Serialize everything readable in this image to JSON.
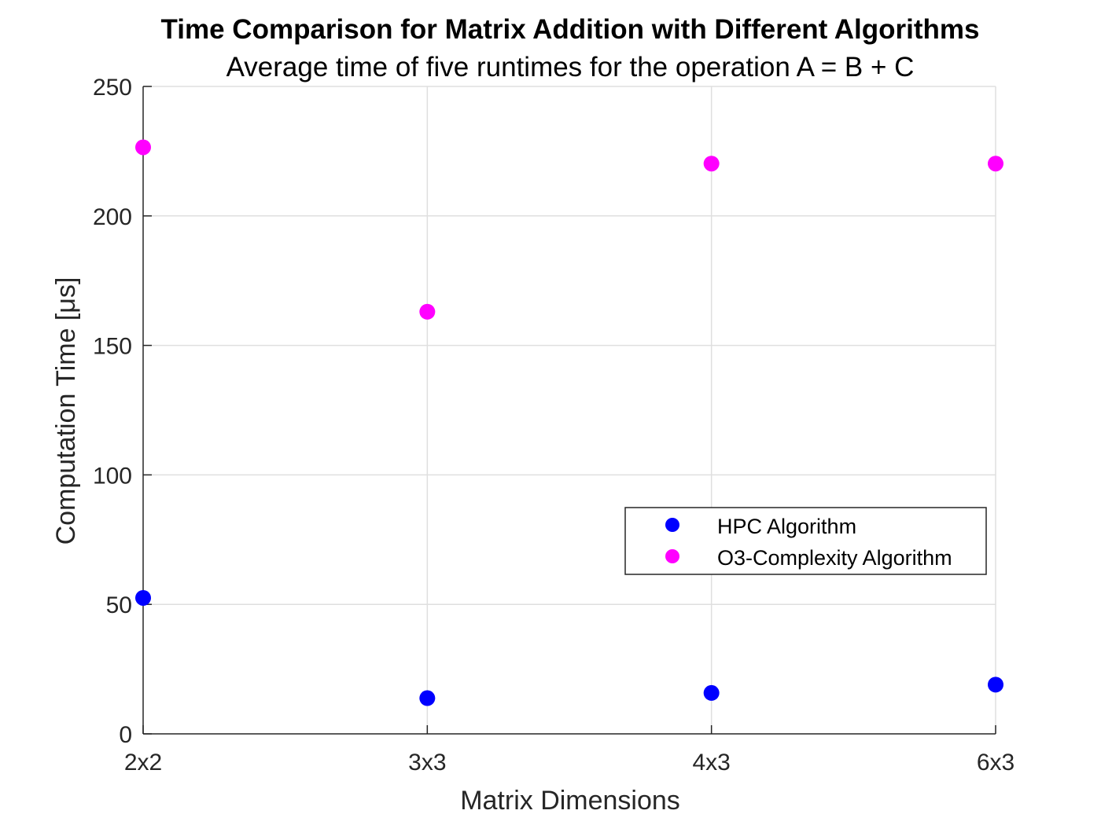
{
  "chart_data": {
    "type": "scatter",
    "title": "Time Comparison for Matrix Addition with Different Algorithms",
    "subtitle": "Average time of five runtimes for the operation A = B + C",
    "xlabel": "Matrix Dimensions",
    "ylabel": "Computation Time [μs]",
    "categories": [
      "2x2",
      "3x3",
      "4x3",
      "6x3"
    ],
    "ylim": [
      0,
      250
    ],
    "yticks": [
      0,
      50,
      100,
      150,
      200,
      250
    ],
    "grid": true,
    "legend_position": "middle-right",
    "series": [
      {
        "name": "HPC Algorithm",
        "color": "#0000ff",
        "values": [
          52.5,
          13.8,
          15.8,
          19.0
        ]
      },
      {
        "name": "O3-Complexity Algorithm",
        "color": "#ff00ff",
        "values": [
          226.5,
          163.0,
          220.2,
          220.2
        ]
      }
    ]
  }
}
